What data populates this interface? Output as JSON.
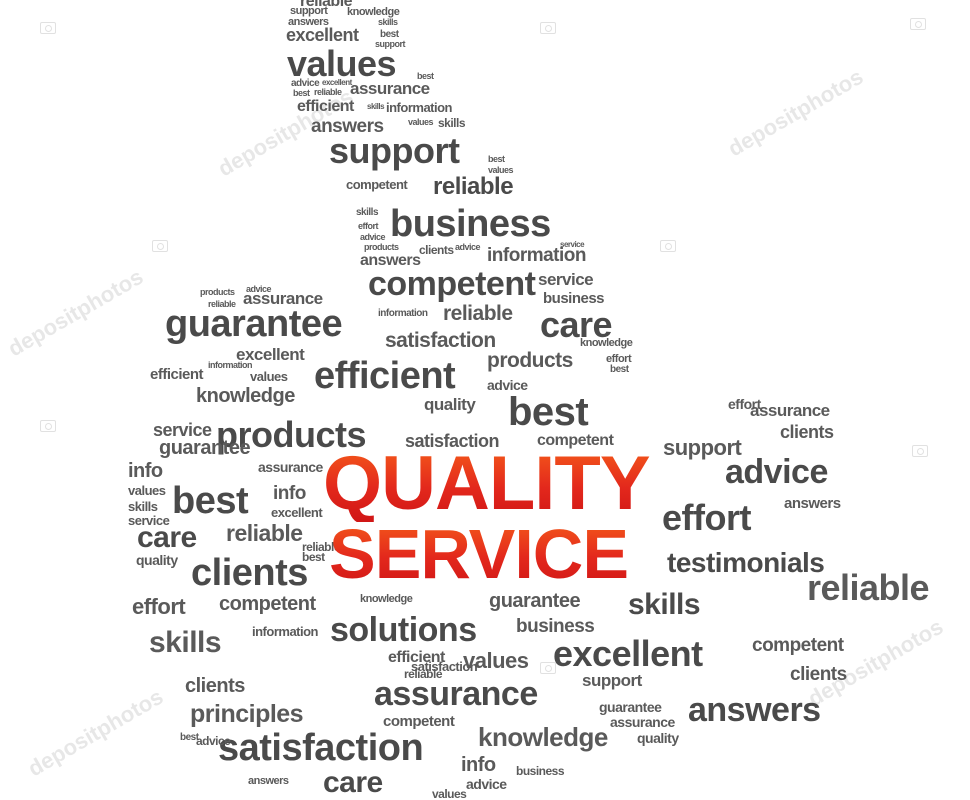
{
  "headline": {
    "line1": "QUALITY",
    "line2": "SERVICE"
  },
  "watermark": "depositphotos",
  "words": [
    "reliable",
    "support",
    "knowledge",
    "answers",
    "skills",
    "excellent",
    "best",
    "support",
    "values",
    "best",
    "advice",
    "excellent",
    "best",
    "reliable",
    "assurance",
    "efficient",
    "skills",
    "information",
    "answers",
    "values",
    "skills",
    "support",
    "best",
    "values",
    "competent",
    "reliable",
    "business",
    "skills",
    "effort",
    "advice",
    "products",
    "answers",
    "clients",
    "advice",
    "information",
    "service",
    "competent",
    "service",
    "business",
    "advice",
    "assurance",
    "guarantee",
    "reliable",
    "products",
    "information",
    "reliable",
    "care",
    "satisfaction",
    "products",
    "efficient",
    "knowledge",
    "excellent",
    "effort",
    "best",
    "information",
    "values",
    "quality",
    "efficient",
    "knowledge",
    "advice",
    "effort",
    "assurance",
    "clients",
    "products",
    "satisfaction",
    "competent",
    "support",
    "advice",
    "service",
    "guarantee",
    "best",
    "info",
    "assurance",
    "values",
    "skills",
    "best",
    "info",
    "service",
    "excellent",
    "effort",
    "reliable",
    "answers",
    "testimonials",
    "care",
    "reliable",
    "best",
    "quality",
    "clients",
    "competent",
    "reliable",
    "guarantee",
    "business",
    "skills",
    "effort",
    "competent",
    "knowledge",
    "clients",
    "solutions",
    "information",
    "support",
    "assurance",
    "answers",
    "efficient",
    "values",
    "reliable",
    "excellent",
    "skills",
    "principles",
    "satisfaction",
    "care",
    "competent",
    "knowledge",
    "answers",
    "guarantee",
    "info",
    "clients",
    "business",
    "assurance",
    "quality",
    "advice",
    "values",
    "best",
    "satisfaction",
    "advice"
  ]
}
